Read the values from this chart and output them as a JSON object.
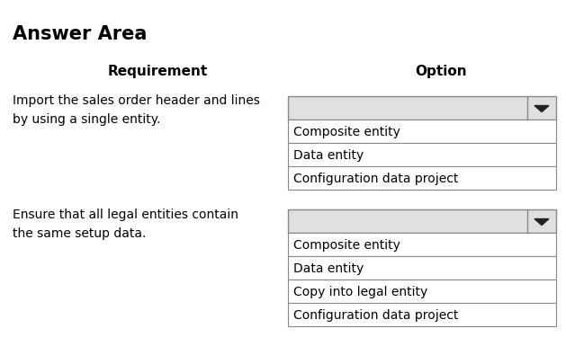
{
  "title": "Answer Area",
  "col_header_requirement": "Requirement",
  "col_header_option": "Option",
  "background_color": "#ffffff",
  "title_fontsize": 15,
  "header_fontsize": 11,
  "body_fontsize": 10,
  "rows": [
    {
      "requirement": "Import the sales order header and lines\nby using a single entity.",
      "options": [
        "Composite entity",
        "Data entity",
        "Configuration data project"
      ]
    },
    {
      "requirement": "Ensure that all legal entities contain\nthe same setup data.",
      "options": [
        "Composite entity",
        "Data entity",
        "Copy into legal entity",
        "Configuration data project"
      ]
    }
  ],
  "dropdown_bg": "#e0e0e0",
  "option_bg": "#ffffff",
  "border_color": "#888888",
  "text_color": "#000000",
  "fig_width": 6.29,
  "fig_height": 4.06,
  "dpi": 100
}
